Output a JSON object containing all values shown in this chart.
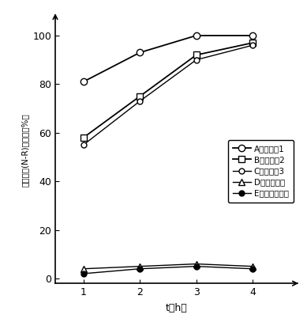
{
  "x": [
    1,
    2,
    3,
    4
  ],
  "series_order": [
    "A",
    "B",
    "C",
    "D",
    "E"
  ],
  "series": {
    "A": {
      "y": [
        81,
        93,
        100,
        100
      ],
      "marker": "o",
      "mfc": "white",
      "ms": 6,
      "lw": 1.3,
      "label": "A：实验组1"
    },
    "B": {
      "y": [
        58,
        75,
        92,
        97
      ],
      "marker": "s",
      "mfc": "white",
      "ms": 6,
      "lw": 1.3,
      "label": "B：实验组2"
    },
    "C": {
      "y": [
        55,
        73,
        90,
        96
      ],
      "marker": "o",
      "mfc": "white",
      "ms": 5,
      "lw": 1.0,
      "label": "C：实验组3"
    },
    "D": {
      "y": [
        4,
        5,
        6,
        5
      ],
      "marker": "^",
      "mfc": "white",
      "ms": 6,
      "lw": 1.0,
      "label": "D：避光处理"
    },
    "E": {
      "y": [
        2,
        4,
        5,
        4
      ],
      "marker": "o",
      "mfc": "black",
      "ms": 5,
      "lw": 1.0,
      "label": "E：空白对照组"
    }
  },
  "xlabel": "t（h）",
  "ylabel": "活性橙染(N-R)降解率（%）",
  "xlim": [
    0.5,
    4.8
  ],
  "ylim": [
    -2,
    108
  ],
  "yticks": [
    0,
    20,
    40,
    60,
    80,
    100
  ],
  "xticks": [
    1,
    2,
    3,
    4
  ],
  "background_color": "#ffffff",
  "line_color": "#000000"
}
